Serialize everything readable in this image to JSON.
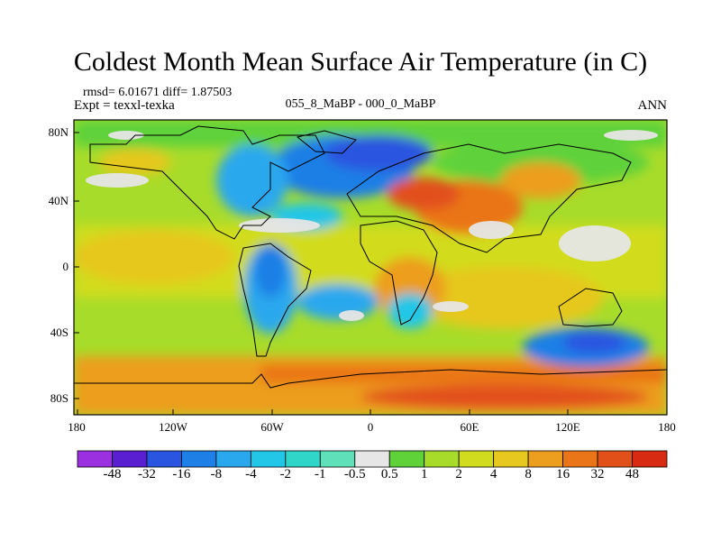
{
  "title": "Coldest Month Mean Surface Air Temperature (in C)",
  "stats": "rmsd= 6.01671  diff= 1.87503",
  "experiment": "Expt = texxl-texka",
  "comparison": "055_8_MaBP - 000_0_MaBP",
  "season": "ANN",
  "lat_labels": [
    "80N",
    "40N",
    "0",
    "40S",
    "80S"
  ],
  "lon_labels": [
    "180",
    "120W",
    "60W",
    "0",
    "60E",
    "120E",
    "180"
  ],
  "colorbar": {
    "labels": [
      "-48",
      "-32",
      "-16",
      "-8",
      "-4",
      "-2",
      "-1",
      "-0.5",
      "0.5",
      "1",
      "2",
      "4",
      "8",
      "16",
      "32",
      "48"
    ],
    "colors": [
      "#9b30e0",
      "#5a1fd0",
      "#2a55e0",
      "#1e7fe6",
      "#2aa8ee",
      "#22c6e6",
      "#30d6c8",
      "#5fe0b8",
      "#e6e6e6",
      "#5fd23a",
      "#a8dc2a",
      "#d2dc1e",
      "#e6c81e",
      "#ec9e1e",
      "#ea7418",
      "#e2501a",
      "#d82a12"
    ]
  }
}
